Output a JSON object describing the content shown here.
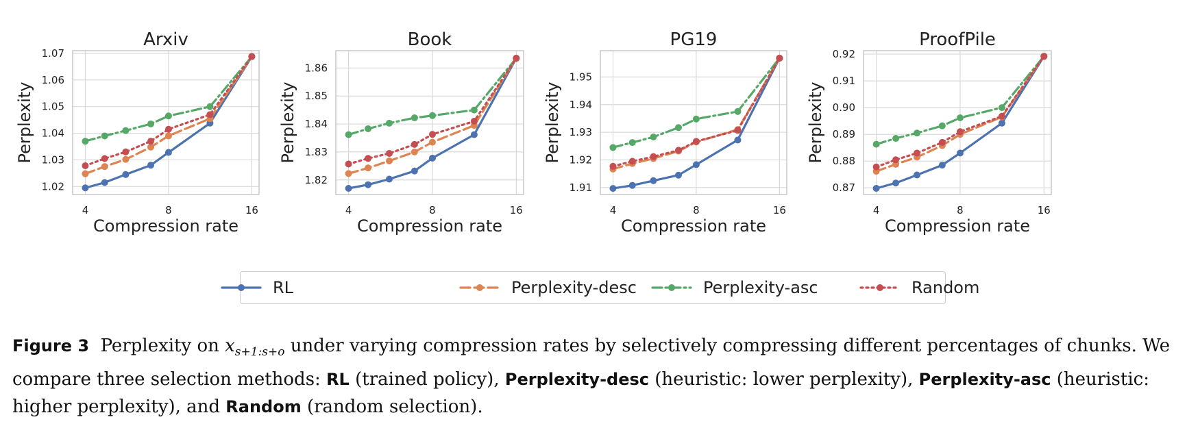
{
  "caption": {
    "figure_label": "Figure 3",
    "pre_math": "Perplexity on ",
    "math_base": "x",
    "math_sub": "s+1:s+o",
    "text1": " under varying compression rates by selectively compressing different percentages of chunks. We compare three selection methods: ",
    "m1": "RL",
    "d1": " (trained policy), ",
    "m2": "Perplexity-desc",
    "d2": " (heuristic: lower perplexity), ",
    "m3": "Perplexity-asc",
    "d3": " (heuristic: higher perplexity), and ",
    "m4": "Random",
    "d4": " (random selection)."
  },
  "legend": [
    {
      "name": "RL",
      "color": "#4c72b0",
      "dash": "solid"
    },
    {
      "name": "Perplexity-desc",
      "color": "#dd8452",
      "dash": "dashed"
    },
    {
      "name": "Perplexity-asc",
      "color": "#55a868",
      "dash": "dashdot"
    },
    {
      "name": "Random",
      "color": "#c44e52",
      "dash": "dotted"
    }
  ],
  "chart_data": [
    {
      "type": "line",
      "title": "Arxiv",
      "xlabel": "Compression rate",
      "ylabel": "Perplexity",
      "xscale": "log2",
      "xticks": [
        4,
        8,
        16
      ],
      "xlim": [
        3.6,
        17
      ],
      "yticks": [
        1.02,
        1.03,
        1.04,
        1.05,
        1.06,
        1.07
      ],
      "ylim": [
        1.017,
        1.071
      ],
      "x": [
        4,
        4.7,
        5.6,
        6.9,
        8,
        11.3,
        16
      ],
      "series": [
        {
          "name": "RL",
          "values": [
            1.0195,
            1.0215,
            1.0245,
            1.028,
            1.0328,
            1.0438,
            1.0688
          ]
        },
        {
          "name": "Perplexity-desc",
          "values": [
            1.0248,
            1.0275,
            1.0302,
            1.0348,
            1.039,
            1.0455,
            1.0688
          ]
        },
        {
          "name": "Perplexity-asc",
          "values": [
            1.037,
            1.039,
            1.041,
            1.0435,
            1.0465,
            1.05,
            1.0688
          ]
        },
        {
          "name": "Random",
          "values": [
            1.0278,
            1.0305,
            1.033,
            1.037,
            1.0415,
            1.047,
            1.0688
          ]
        }
      ]
    },
    {
      "type": "line",
      "title": "Book",
      "xlabel": "Compression rate",
      "ylabel": "Perplexity",
      "xscale": "log2",
      "xticks": [
        4,
        8,
        16
      ],
      "xlim": [
        3.6,
        17
      ],
      "yticks": [
        1.82,
        1.83,
        1.84,
        1.85,
        1.86
      ],
      "ylim": [
        1.8148,
        1.8662
      ],
      "x": [
        4,
        4.7,
        5.6,
        6.9,
        8,
        11.3,
        16
      ],
      "series": [
        {
          "name": "RL",
          "values": [
            1.817,
            1.8183,
            1.8203,
            1.8232,
            1.8278,
            1.8362,
            1.8635
          ]
        },
        {
          "name": "Perplexity-desc",
          "values": [
            1.8223,
            1.8243,
            1.8268,
            1.83,
            1.8335,
            1.8395,
            1.8635
          ]
        },
        {
          "name": "Perplexity-asc",
          "values": [
            1.8362,
            1.8383,
            1.8403,
            1.8422,
            1.843,
            1.845,
            1.8635
          ]
        },
        {
          "name": "Random",
          "values": [
            1.8257,
            1.8277,
            1.8295,
            1.8327,
            1.8363,
            1.841,
            1.8635
          ]
        }
      ]
    },
    {
      "type": "line",
      "title": "PG19",
      "xlabel": "Compression rate",
      "ylabel": "Perplexity",
      "xscale": "log2",
      "xticks": [
        4,
        8,
        16
      ],
      "xlim": [
        3.6,
        17
      ],
      "yticks": [
        1.91,
        1.92,
        1.93,
        1.94,
        1.95
      ],
      "ylim": [
        1.9075,
        1.9595
      ],
      "x": [
        4,
        4.7,
        5.6,
        6.9,
        8,
        11.3,
        16
      ],
      "series": [
        {
          "name": "RL",
          "values": [
            1.9097,
            1.9108,
            1.9125,
            1.9145,
            1.9183,
            1.9272,
            1.9568
          ]
        },
        {
          "name": "Perplexity-desc",
          "values": [
            1.9167,
            1.9187,
            1.9205,
            1.9232,
            1.9265,
            1.931,
            1.9568
          ]
        },
        {
          "name": "Perplexity-asc",
          "values": [
            1.9245,
            1.9263,
            1.9283,
            1.9317,
            1.9348,
            1.9375,
            1.9568
          ]
        },
        {
          "name": "Random",
          "values": [
            1.9177,
            1.9195,
            1.9212,
            1.9235,
            1.9267,
            1.9307,
            1.9568
          ]
        }
      ]
    },
    {
      "type": "line",
      "title": "ProofPile",
      "xlabel": "Compression rate",
      "ylabel": "Perplexity",
      "xscale": "log2",
      "xticks": [
        4,
        8,
        16
      ],
      "xlim": [
        3.6,
        17
      ],
      "yticks": [
        0.87,
        0.88,
        0.89,
        0.9,
        0.91,
        0.92
      ],
      "ylim": [
        0.8675,
        0.9213
      ],
      "ytick_labels": [
        "0.87",
        "0.88",
        "0.89",
        "0.90",
        "0.91",
        "0.92"
      ],
      "x": [
        4,
        4.7,
        5.6,
        6.9,
        8,
        11.3,
        16
      ],
      "series": [
        {
          "name": "RL",
          "values": [
            0.8698,
            0.8718,
            0.8748,
            0.8785,
            0.883,
            0.8942,
            0.9192
          ]
        },
        {
          "name": "Perplexity-desc",
          "values": [
            0.8762,
            0.8788,
            0.8815,
            0.8858,
            0.89,
            0.8965,
            0.9192
          ]
        },
        {
          "name": "Perplexity-asc",
          "values": [
            0.8863,
            0.8885,
            0.8905,
            0.8932,
            0.8962,
            0.9,
            0.9192
          ]
        },
        {
          "name": "Random",
          "values": [
            0.8778,
            0.8805,
            0.883,
            0.887,
            0.891,
            0.8968,
            0.9192
          ]
        }
      ]
    }
  ]
}
